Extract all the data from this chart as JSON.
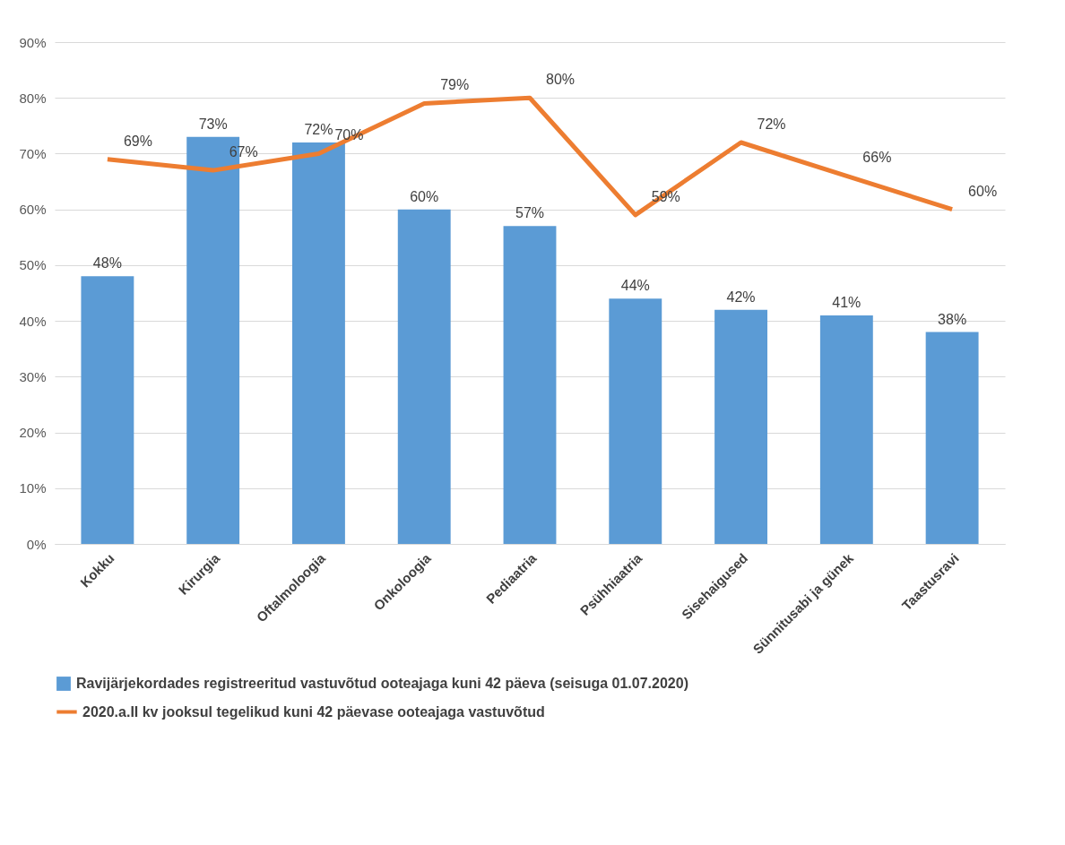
{
  "chart_data": {
    "type": "bar",
    "categories": [
      "Kokku",
      "Kirurgia",
      "Oftalmoloogia",
      "Onkoloogia",
      "Pediaatria",
      "Psühhiaatria",
      "Sisehaigused",
      "Sünnitusabi ja günek",
      "Taastusravi"
    ],
    "series": [
      {
        "name": "Ravijärjekordades registreeritud vastuvõtud ooteajaga kuni 42 päeva (seisuga 01.07.2020)",
        "color": "#5b9bd5",
        "values": [
          48,
          73,
          72,
          60,
          57,
          44,
          42,
          41,
          38
        ],
        "value_labels": [
          "48%",
          "73%",
          "72%",
          "60%",
          "57%",
          "44%",
          "42%",
          "41%",
          "38%"
        ]
      },
      {
        "name": "2020.a.II kv jooksul tegelikud  kuni 42 päevase ooteajaga vastuvõtud",
        "type": "line",
        "color": "#ed7d31",
        "values": [
          69,
          67,
          70,
          79,
          80,
          59,
          72,
          66,
          60
        ],
        "value_labels": [
          "69%",
          "67%",
          "70%",
          "79%",
          "80%",
          "59%",
          "72%",
          "66%",
          "60%"
        ]
      }
    ],
    "ylim": [
      0,
      90
    ],
    "yticks": [
      {
        "value": 0,
        "label": "0%"
      },
      {
        "value": 10,
        "label": "10%"
      },
      {
        "value": 20,
        "label": "20%"
      },
      {
        "value": 30,
        "label": "30%"
      },
      {
        "value": 40,
        "label": "40%"
      },
      {
        "value": 50,
        "label": "50%"
      },
      {
        "value": 60,
        "label": "60%"
      },
      {
        "value": 70,
        "label": "70%"
      },
      {
        "value": 80,
        "label": "80%"
      },
      {
        "value": 90,
        "label": "90%"
      }
    ],
    "grid": "y",
    "legend": "bottom",
    "marker": "none",
    "line_style": "solid"
  }
}
